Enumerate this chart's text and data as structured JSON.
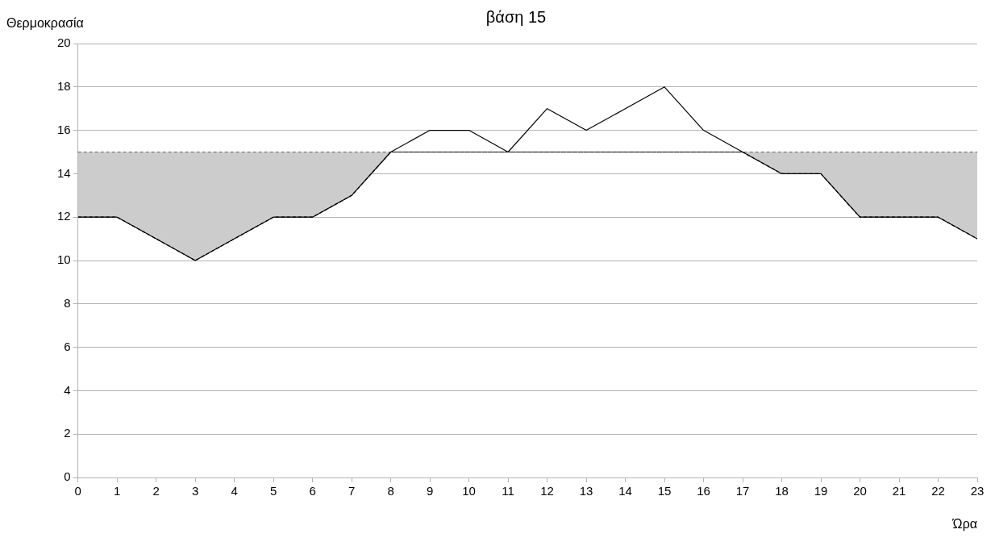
{
  "chart_data": {
    "type": "line",
    "title": "βάση 15",
    "xlabel": "Ώρα",
    "ylabel": "Θερμοκρασία",
    "x": [
      0,
      1,
      2,
      3,
      4,
      5,
      6,
      7,
      8,
      9,
      10,
      11,
      12,
      13,
      14,
      15,
      16,
      17,
      18,
      19,
      20,
      21,
      22,
      23
    ],
    "series": [
      {
        "color": "#000000",
        "line_style": "dashed",
        "values": [
          12,
          12,
          11,
          10,
          11,
          12,
          12,
          13,
          15,
          15,
          15,
          15,
          15,
          15,
          15,
          15,
          15,
          15,
          14,
          14,
          12,
          12,
          12,
          11
        ],
        "lower": [
          12,
          12,
          11,
          10,
          11,
          12,
          12,
          13,
          15,
          15,
          15,
          15,
          15,
          15,
          15,
          15,
          15,
          15,
          14,
          14,
          12,
          12,
          12,
          11
        ],
        "upper": [
          15,
          15,
          15,
          15,
          15,
          15,
          15,
          15,
          15,
          15,
          15,
          15,
          15,
          15,
          15,
          15,
          15,
          15,
          15,
          15,
          15,
          15,
          15,
          15
        ]
      },
      {
        "color": "#000000",
        "values": [
          12,
          12,
          11,
          10,
          11,
          12,
          12,
          13,
          15,
          16,
          16,
          15,
          17,
          16,
          17,
          18,
          16,
          15,
          14,
          14,
          12,
          12,
          12,
          11
        ]
      }
    ],
    "ref_lines": [
      {
        "axis": "y",
        "value": 15,
        "line_style": "dashed",
        "color": "#000000"
      }
    ],
    "xlim": [
      0,
      23
    ],
    "xticks": [
      0,
      1,
      2,
      3,
      4,
      5,
      6,
      7,
      8,
      9,
      10,
      11,
      12,
      13,
      14,
      15,
      16,
      17,
      18,
      19,
      20,
      21,
      22,
      23
    ],
    "ylim": [
      0,
      20
    ],
    "yticks": [
      0,
      2,
      4,
      6,
      8,
      10,
      12,
      14,
      16,
      18,
      20
    ],
    "grid": "y",
    "legend": false,
    "marker": "none",
    "line_style": "solid"
  }
}
